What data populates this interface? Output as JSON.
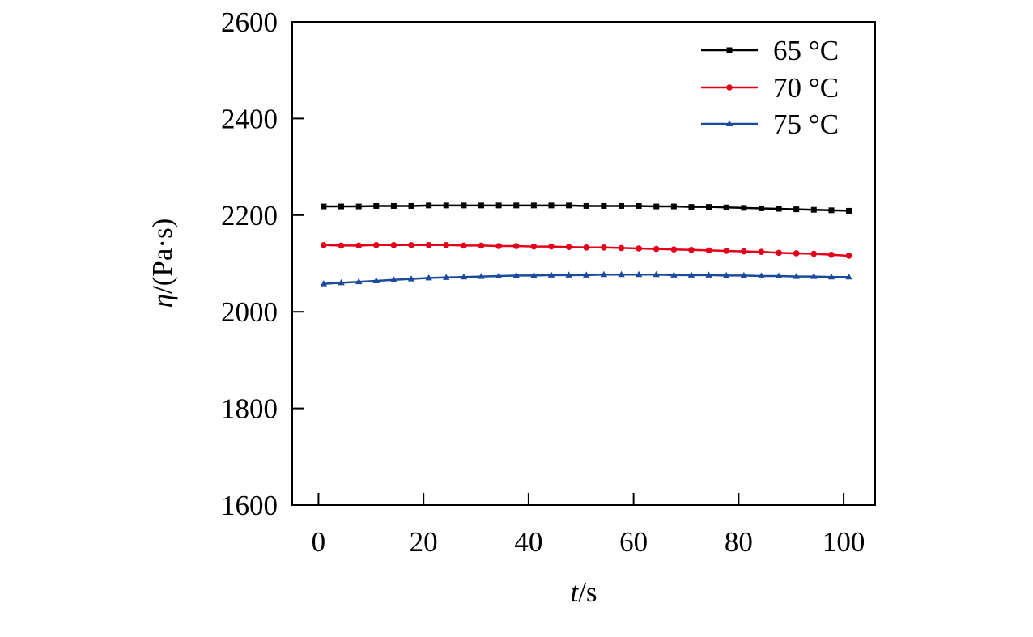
{
  "chart_data": {
    "type": "line",
    "title": "",
    "xlabel": {
      "var": "t",
      "unit": "/s"
    },
    "ylabel": {
      "var": "η",
      "unit": "/(Pa·s)"
    },
    "xlim": [
      -5,
      106
    ],
    "ylim": [
      1600,
      2600
    ],
    "xticks": [
      0,
      20,
      40,
      60,
      80,
      100
    ],
    "yticks": [
      1600,
      1800,
      2000,
      2200,
      2400,
      2600
    ],
    "grid": false,
    "legend_position": "top-right",
    "x": [
      1,
      4.33,
      7.67,
      11,
      14.33,
      17.67,
      21,
      24.33,
      27.67,
      31,
      34.33,
      37.67,
      41,
      44.33,
      47.67,
      51,
      54.33,
      57.67,
      61,
      64.33,
      67.67,
      71,
      74.33,
      77.67,
      81,
      84.33,
      87.67,
      91,
      94.33,
      97.67,
      101
    ],
    "series": [
      {
        "name": "65 °C",
        "color": "#000000",
        "marker": "square",
        "values": [
          2218,
          2218,
          2218,
          2219,
          2219,
          2219,
          2220,
          2220,
          2220,
          2220,
          2220,
          2220,
          2220,
          2220,
          2220,
          2219,
          2219,
          2219,
          2219,
          2218,
          2218,
          2217,
          2217,
          2216,
          2215,
          2214,
          2213,
          2212,
          2211,
          2210,
          2209
        ]
      },
      {
        "name": "70 °C",
        "color": "#e2001a",
        "marker": "circle",
        "values": [
          2138,
          2137,
          2137,
          2138,
          2138,
          2138,
          2138,
          2138,
          2137,
          2137,
          2136,
          2136,
          2135,
          2135,
          2134,
          2133,
          2133,
          2132,
          2131,
          2130,
          2129,
          2128,
          2127,
          2126,
          2125,
          2124,
          2122,
          2121,
          2120,
          2118,
          2116
        ]
      },
      {
        "name": "75 °C",
        "color": "#1a4a9c",
        "marker": "triangle",
        "values": [
          2058,
          2060,
          2062,
          2064,
          2066,
          2068,
          2070,
          2071,
          2072,
          2073,
          2074,
          2075,
          2075,
          2076,
          2076,
          2076,
          2077,
          2077,
          2077,
          2077,
          2076,
          2076,
          2076,
          2075,
          2075,
          2074,
          2074,
          2073,
          2073,
          2072,
          2072
        ]
      }
    ]
  }
}
